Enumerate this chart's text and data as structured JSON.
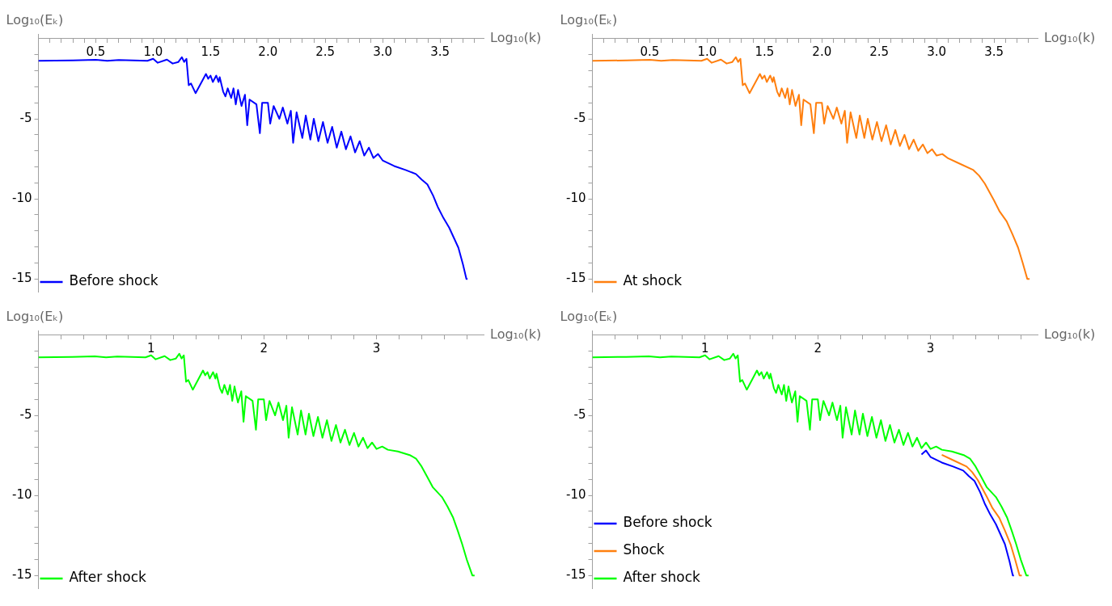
{
  "chart_data": [
    {
      "type": "line",
      "xlabel": "Log₁₀(k)",
      "ylabel": "Log₁₀(Eₖ)",
      "xlim": [
        0,
        3.88
      ],
      "ylim": [
        -15.8,
        0.3
      ],
      "legend": "bottom left",
      "marker": "none",
      "xticks": [
        {
          "value": 0.1,
          "label": null
        },
        {
          "value": 0.2,
          "label": null
        },
        {
          "value": 0.3,
          "label": null
        },
        {
          "value": 0.4,
          "label": null
        },
        0.5,
        {
          "value": 0.6,
          "label": null
        },
        {
          "value": 0.7,
          "label": null
        },
        {
          "value": 0.8,
          "label": null
        },
        {
          "value": 0.9,
          "label": null
        },
        {
          "value": 1,
          "label": "1.0"
        },
        {
          "value": 1.1,
          "label": null
        },
        {
          "value": 1.2,
          "label": null
        },
        {
          "value": 1.3,
          "label": null
        },
        {
          "value": 1.4,
          "label": null
        },
        1.5,
        {
          "value": 1.6,
          "label": null
        },
        {
          "value": 1.7,
          "label": null
        },
        {
          "value": 1.8,
          "label": null
        },
        {
          "value": 1.9,
          "label": null
        },
        {
          "value": 2,
          "label": "2.0"
        },
        {
          "value": 2.1,
          "label": null
        },
        {
          "value": 2.2,
          "label": null
        },
        {
          "value": 2.3,
          "label": null
        },
        {
          "value": 2.4,
          "label": null
        },
        2.5,
        {
          "value": 2.6,
          "label": null
        },
        {
          "value": 2.7,
          "label": null
        },
        {
          "value": 2.8,
          "label": null
        },
        {
          "value": 2.9,
          "label": null
        },
        {
          "value": 3,
          "label": "3.0"
        },
        {
          "value": 3.1,
          "label": null
        },
        {
          "value": 3.2,
          "label": null
        },
        {
          "value": 3.3,
          "label": null
        },
        {
          "value": 3.4,
          "label": null
        },
        3.5,
        {
          "value": 3.6,
          "label": null
        },
        {
          "value": 3.7,
          "label": null
        },
        {
          "value": 3.8,
          "label": null
        }
      ],
      "yticks": [
        {
          "value": -1,
          "label": null
        },
        {
          "value": -2,
          "label": null
        },
        {
          "value": -3,
          "label": null
        },
        {
          "value": -4,
          "label": null
        },
        -5,
        {
          "value": -6,
          "label": null
        },
        {
          "value": -7,
          "label": null
        },
        {
          "value": -8,
          "label": null
        },
        {
          "value": -9,
          "label": null
        },
        -10,
        {
          "value": -11,
          "label": null
        },
        {
          "value": -12,
          "label": null
        },
        {
          "value": -13,
          "label": null
        },
        {
          "value": -14,
          "label": null
        },
        -15
      ],
      "series": [
        {
          "name": "Before shock",
          "color": "#0000ff",
          "x": [
            0,
            0.3,
            0.5,
            0.6,
            0.7,
            0.95,
            1.0,
            1.04,
            1.12,
            1.17,
            1.22,
            1.25,
            1.27,
            1.29,
            1.31,
            1.33,
            1.37,
            1.43,
            1.46,
            1.48,
            1.5,
            1.52,
            1.55,
            1.57,
            1.58,
            1.61,
            1.63,
            1.65,
            1.68,
            1.7,
            1.72,
            1.74,
            1.77,
            1.8,
            1.82,
            1.84,
            1.9,
            1.93,
            1.95,
            2.0,
            2.02,
            2.05,
            2.1,
            2.13,
            2.17,
            2.2,
            2.22,
            2.25,
            2.3,
            2.33,
            2.37,
            2.4,
            2.44,
            2.48,
            2.52,
            2.56,
            2.6,
            2.64,
            2.68,
            2.72,
            2.76,
            2.8,
            2.84,
            2.88,
            2.92,
            2.96,
            3.0,
            3.1,
            3.2,
            3.29,
            3.34,
            3.39,
            3.44,
            3.48,
            3.53,
            3.58,
            3.66,
            3.7,
            3.73,
            3.74
          ],
          "values": [
            -1.38,
            -1.35,
            -1.32,
            -1.38,
            -1.33,
            -1.38,
            -1.25,
            -1.5,
            -1.3,
            -1.55,
            -1.45,
            -1.15,
            -1.45,
            -1.25,
            -2.9,
            -2.8,
            -3.4,
            -2.6,
            -2.2,
            -2.5,
            -2.3,
            -2.7,
            -2.3,
            -2.7,
            -2.4,
            -3.3,
            -3.6,
            -3.1,
            -3.7,
            -3.1,
            -4.1,
            -3.2,
            -4.2,
            -3.5,
            -5.4,
            -3.8,
            -4.1,
            -5.9,
            -4.0,
            -4.0,
            -5.3,
            -4.2,
            -5.0,
            -4.3,
            -5.3,
            -4.5,
            -6.5,
            -4.6,
            -6.2,
            -4.8,
            -6.3,
            -5.0,
            -6.4,
            -5.2,
            -6.5,
            -5.5,
            -6.8,
            -5.8,
            -6.9,
            -6.1,
            -7.1,
            -6.4,
            -7.3,
            -6.8,
            -7.45,
            -7.2,
            -7.6,
            -7.95,
            -8.2,
            -8.45,
            -8.8,
            -9.1,
            -9.8,
            -10.5,
            -11.2,
            -11.8,
            -13.05,
            -14.1,
            -15.0,
            -15.0
          ]
        }
      ]
    },
    {
      "type": "line",
      "xlabel": "Log₁₀(k)",
      "ylabel": "Log₁₀(Eₖ)",
      "xlim": [
        0,
        3.88
      ],
      "ylim": [
        -15.8,
        0.3
      ],
      "legend": "bottom left",
      "marker": "none",
      "xticks": [
        {
          "value": 0.1,
          "label": null
        },
        {
          "value": 0.2,
          "label": null
        },
        {
          "value": 0.3,
          "label": null
        },
        {
          "value": 0.4,
          "label": null
        },
        0.5,
        {
          "value": 0.6,
          "label": null
        },
        {
          "value": 0.7,
          "label": null
        },
        {
          "value": 0.8,
          "label": null
        },
        {
          "value": 0.9,
          "label": null
        },
        {
          "value": 1,
          "label": "1.0"
        },
        {
          "value": 1.1,
          "label": null
        },
        {
          "value": 1.2,
          "label": null
        },
        {
          "value": 1.3,
          "label": null
        },
        {
          "value": 1.4,
          "label": null
        },
        1.5,
        {
          "value": 1.6,
          "label": null
        },
        {
          "value": 1.7,
          "label": null
        },
        {
          "value": 1.8,
          "label": null
        },
        {
          "value": 1.9,
          "label": null
        },
        {
          "value": 2,
          "label": "2.0"
        },
        {
          "value": 2.1,
          "label": null
        },
        {
          "value": 2.2,
          "label": null
        },
        {
          "value": 2.3,
          "label": null
        },
        {
          "value": 2.4,
          "label": null
        },
        2.5,
        {
          "value": 2.6,
          "label": null
        },
        {
          "value": 2.7,
          "label": null
        },
        {
          "value": 2.8,
          "label": null
        },
        {
          "value": 2.9,
          "label": null
        },
        {
          "value": 3,
          "label": "3.0"
        },
        {
          "value": 3.1,
          "label": null
        },
        {
          "value": 3.2,
          "label": null
        },
        {
          "value": 3.3,
          "label": null
        },
        {
          "value": 3.4,
          "label": null
        },
        3.5,
        {
          "value": 3.6,
          "label": null
        },
        {
          "value": 3.7,
          "label": null
        },
        {
          "value": 3.8,
          "label": null
        }
      ],
      "yticks": [
        {
          "value": -1,
          "label": null
        },
        {
          "value": -2,
          "label": null
        },
        {
          "value": -3,
          "label": null
        },
        {
          "value": -4,
          "label": null
        },
        -5,
        {
          "value": -6,
          "label": null
        },
        {
          "value": -7,
          "label": null
        },
        {
          "value": -8,
          "label": null
        },
        {
          "value": -9,
          "label": null
        },
        -10,
        {
          "value": -11,
          "label": null
        },
        {
          "value": -12,
          "label": null
        },
        {
          "value": -13,
          "label": null
        },
        {
          "value": -14,
          "label": null
        },
        -15
      ],
      "series": [
        {
          "name": "At shock",
          "color": "#ff7f0e",
          "x": [
            0,
            0.3,
            0.5,
            0.6,
            0.7,
            0.95,
            1.0,
            1.04,
            1.12,
            1.17,
            1.22,
            1.25,
            1.27,
            1.29,
            1.31,
            1.33,
            1.37,
            1.43,
            1.46,
            1.48,
            1.5,
            1.52,
            1.55,
            1.57,
            1.58,
            1.61,
            1.63,
            1.65,
            1.68,
            1.7,
            1.72,
            1.74,
            1.77,
            1.8,
            1.82,
            1.84,
            1.9,
            1.93,
            1.95,
            2.0,
            2.02,
            2.05,
            2.1,
            2.13,
            2.17,
            2.2,
            2.22,
            2.25,
            2.3,
            2.33,
            2.37,
            2.4,
            2.44,
            2.48,
            2.52,
            2.56,
            2.6,
            2.64,
            2.68,
            2.72,
            2.76,
            2.8,
            2.84,
            2.88,
            2.92,
            2.96,
            3.0,
            3.05,
            3.1,
            3.2,
            3.32,
            3.37,
            3.42,
            3.5,
            3.55,
            3.61,
            3.66,
            3.71,
            3.75,
            3.79,
            3.81
          ],
          "values": [
            -1.38,
            -1.35,
            -1.32,
            -1.38,
            -1.33,
            -1.38,
            -1.25,
            -1.5,
            -1.3,
            -1.55,
            -1.45,
            -1.15,
            -1.45,
            -1.25,
            -2.9,
            -2.8,
            -3.4,
            -2.6,
            -2.2,
            -2.5,
            -2.3,
            -2.7,
            -2.3,
            -2.7,
            -2.4,
            -3.3,
            -3.6,
            -3.1,
            -3.7,
            -3.1,
            -4.1,
            -3.2,
            -4.2,
            -3.5,
            -5.4,
            -3.8,
            -4.1,
            -5.9,
            -4.0,
            -4.0,
            -5.3,
            -4.2,
            -5.0,
            -4.3,
            -5.3,
            -4.5,
            -6.5,
            -4.6,
            -6.2,
            -4.8,
            -6.2,
            -5.0,
            -6.3,
            -5.2,
            -6.4,
            -5.4,
            -6.6,
            -5.7,
            -6.7,
            -6.0,
            -6.9,
            -6.3,
            -7.0,
            -6.6,
            -7.15,
            -6.9,
            -7.3,
            -7.2,
            -7.47,
            -7.8,
            -8.2,
            -8.55,
            -9.05,
            -10.1,
            -10.8,
            -11.4,
            -12.2,
            -13.05,
            -14.0,
            -15.0,
            -15.0
          ]
        }
      ]
    },
    {
      "type": "line",
      "xlabel": "Log₁₀(k)",
      "ylabel": "Log₁₀(Eₖ)",
      "xlim": [
        0,
        3.95
      ],
      "ylim": [
        -15.8,
        0.3
      ],
      "legend": "bottom left",
      "marker": "none",
      "xticks": [
        {
          "value": 0.2,
          "label": null
        },
        {
          "value": 0.4,
          "label": null
        },
        {
          "value": 0.6,
          "label": null
        },
        {
          "value": 0.8,
          "label": null
        },
        1,
        {
          "value": 1.2,
          "label": null
        },
        {
          "value": 1.4,
          "label": null
        },
        {
          "value": 1.6,
          "label": null
        },
        {
          "value": 1.8,
          "label": null
        },
        2,
        {
          "value": 2.2,
          "label": null
        },
        {
          "value": 2.4,
          "label": null
        },
        {
          "value": 2.6,
          "label": null
        },
        {
          "value": 2.8,
          "label": null
        },
        3,
        {
          "value": 3.2,
          "label": null
        },
        {
          "value": 3.4,
          "label": null
        },
        {
          "value": 3.6,
          "label": null
        },
        {
          "value": 3.8,
          "label": null
        }
      ],
      "yticks": [
        {
          "value": -1,
          "label": null
        },
        {
          "value": -2,
          "label": null
        },
        {
          "value": -3,
          "label": null
        },
        {
          "value": -4,
          "label": null
        },
        -5,
        {
          "value": -6,
          "label": null
        },
        {
          "value": -7,
          "label": null
        },
        {
          "value": -8,
          "label": null
        },
        {
          "value": -9,
          "label": null
        },
        -10,
        {
          "value": -11,
          "label": null
        },
        {
          "value": -12,
          "label": null
        },
        {
          "value": -13,
          "label": null
        },
        {
          "value": -14,
          "label": null
        },
        -15
      ],
      "series": [
        {
          "name": "After shock",
          "color": "#00ff00",
          "x": [
            0,
            0.3,
            0.5,
            0.6,
            0.7,
            0.95,
            1.0,
            1.04,
            1.12,
            1.17,
            1.22,
            1.25,
            1.27,
            1.29,
            1.31,
            1.33,
            1.37,
            1.43,
            1.46,
            1.48,
            1.5,
            1.52,
            1.55,
            1.57,
            1.58,
            1.61,
            1.63,
            1.65,
            1.68,
            1.7,
            1.72,
            1.74,
            1.77,
            1.8,
            1.82,
            1.84,
            1.9,
            1.93,
            1.95,
            2.0,
            2.02,
            2.05,
            2.1,
            2.13,
            2.17,
            2.2,
            2.22,
            2.25,
            2.3,
            2.33,
            2.37,
            2.4,
            2.44,
            2.48,
            2.52,
            2.56,
            2.6,
            2.64,
            2.68,
            2.72,
            2.76,
            2.8,
            2.84,
            2.88,
            2.92,
            2.96,
            3.0,
            3.05,
            3.1,
            3.19,
            3.3,
            3.35,
            3.4,
            3.45,
            3.5,
            3.58,
            3.63,
            3.68,
            3.72,
            3.76,
            3.8,
            3.85,
            3.87
          ],
          "values": [
            -1.38,
            -1.35,
            -1.32,
            -1.38,
            -1.33,
            -1.38,
            -1.25,
            -1.5,
            -1.3,
            -1.55,
            -1.45,
            -1.15,
            -1.45,
            -1.25,
            -2.9,
            -2.8,
            -3.4,
            -2.6,
            -2.2,
            -2.5,
            -2.3,
            -2.7,
            -2.3,
            -2.7,
            -2.4,
            -3.3,
            -3.6,
            -3.1,
            -3.7,
            -3.1,
            -4.1,
            -3.2,
            -4.2,
            -3.5,
            -5.4,
            -3.8,
            -4.1,
            -5.9,
            -4.0,
            -4.0,
            -5.3,
            -4.1,
            -5.0,
            -4.2,
            -5.3,
            -4.4,
            -6.4,
            -4.5,
            -6.2,
            -4.7,
            -6.2,
            -4.9,
            -6.3,
            -5.1,
            -6.4,
            -5.3,
            -6.6,
            -5.6,
            -6.7,
            -5.9,
            -6.85,
            -6.1,
            -6.95,
            -6.4,
            -7.05,
            -6.7,
            -7.1,
            -6.95,
            -7.15,
            -7.26,
            -7.5,
            -7.7,
            -8.2,
            -8.85,
            -9.5,
            -10.1,
            -10.7,
            -11.4,
            -12.2,
            -13.05,
            -14.0,
            -15.0,
            -15.0
          ]
        }
      ]
    },
    {
      "type": "line",
      "xlabel": "Log₁₀(k)",
      "ylabel": "Log₁₀(Eₖ)",
      "xlim": [
        0,
        3.95
      ],
      "ylim": [
        -15.8,
        0.3
      ],
      "legend": "bottom left",
      "marker": "none",
      "xticks": [
        {
          "value": 0.2,
          "label": null
        },
        {
          "value": 0.4,
          "label": null
        },
        {
          "value": 0.6,
          "label": null
        },
        {
          "value": 0.8,
          "label": null
        },
        1,
        {
          "value": 1.2,
          "label": null
        },
        {
          "value": 1.4,
          "label": null
        },
        {
          "value": 1.6,
          "label": null
        },
        {
          "value": 1.8,
          "label": null
        },
        2,
        {
          "value": 2.2,
          "label": null
        },
        {
          "value": 2.4,
          "label": null
        },
        {
          "value": 2.6,
          "label": null
        },
        {
          "value": 2.8,
          "label": null
        },
        3,
        {
          "value": 3.2,
          "label": null
        },
        {
          "value": 3.4,
          "label": null
        },
        {
          "value": 3.6,
          "label": null
        },
        {
          "value": 3.8,
          "label": null
        }
      ],
      "yticks": [
        {
          "value": -1,
          "label": null
        },
        {
          "value": -2,
          "label": null
        },
        {
          "value": -3,
          "label": null
        },
        {
          "value": -4,
          "label": null
        },
        -5,
        {
          "value": -6,
          "label": null
        },
        {
          "value": -7,
          "label": null
        },
        {
          "value": -8,
          "label": null
        },
        {
          "value": -9,
          "label": null
        },
        -10,
        {
          "value": -11,
          "label": null
        },
        {
          "value": -12,
          "label": null
        },
        {
          "value": -13,
          "label": null
        },
        {
          "value": -14,
          "label": null
        },
        -15
      ],
      "series": [
        {
          "name": "Before shock",
          "color": "#0000ff",
          "x": [
            2.92,
            2.96,
            3.0,
            3.1,
            3.2,
            3.29,
            3.34,
            3.39,
            3.44,
            3.48,
            3.53,
            3.58,
            3.66,
            3.7,
            3.73,
            3.74
          ],
          "values": [
            -7.45,
            -7.2,
            -7.6,
            -7.95,
            -8.2,
            -8.45,
            -8.8,
            -9.1,
            -9.8,
            -10.5,
            -11.2,
            -11.8,
            -13.05,
            -14.1,
            -15.0,
            -15.0
          ]
        },
        {
          "name": "Shock",
          "color": "#ff7f0e",
          "x": [
            3.1,
            3.2,
            3.32,
            3.37,
            3.42,
            3.5,
            3.55,
            3.61,
            3.66,
            3.71,
            3.75,
            3.79,
            3.81
          ],
          "values": [
            -7.47,
            -7.8,
            -8.2,
            -8.55,
            -9.05,
            -10.1,
            -10.8,
            -11.4,
            -12.2,
            -13.05,
            -14.0,
            -15.0,
            -15.0
          ]
        },
        {
          "name": "After shock",
          "color": "#00ff00",
          "x": [
            0,
            0.3,
            0.5,
            0.6,
            0.7,
            0.95,
            1.0,
            1.04,
            1.12,
            1.17,
            1.22,
            1.25,
            1.27,
            1.29,
            1.31,
            1.33,
            1.37,
            1.43,
            1.46,
            1.48,
            1.5,
            1.52,
            1.55,
            1.57,
            1.58,
            1.61,
            1.63,
            1.65,
            1.68,
            1.7,
            1.72,
            1.74,
            1.77,
            1.8,
            1.82,
            1.84,
            1.9,
            1.93,
            1.95,
            2.0,
            2.02,
            2.05,
            2.1,
            2.13,
            2.17,
            2.2,
            2.22,
            2.25,
            2.3,
            2.33,
            2.37,
            2.4,
            2.44,
            2.48,
            2.52,
            2.56,
            2.6,
            2.64,
            2.68,
            2.72,
            2.76,
            2.8,
            2.84,
            2.88,
            2.92,
            2.96,
            3.0,
            3.05,
            3.1,
            3.19,
            3.3,
            3.35,
            3.4,
            3.45,
            3.5,
            3.58,
            3.63,
            3.68,
            3.72,
            3.76,
            3.8,
            3.85,
            3.87
          ],
          "values": [
            -1.38,
            -1.35,
            -1.32,
            -1.38,
            -1.33,
            -1.38,
            -1.25,
            -1.5,
            -1.3,
            -1.55,
            -1.45,
            -1.15,
            -1.45,
            -1.25,
            -2.9,
            -2.8,
            -3.4,
            -2.6,
            -2.2,
            -2.5,
            -2.3,
            -2.7,
            -2.3,
            -2.7,
            -2.4,
            -3.3,
            -3.6,
            -3.1,
            -3.7,
            -3.1,
            -4.1,
            -3.2,
            -4.2,
            -3.5,
            -5.4,
            -3.8,
            -4.1,
            -5.9,
            -4.0,
            -4.0,
            -5.3,
            -4.1,
            -5.0,
            -4.2,
            -5.3,
            -4.4,
            -6.4,
            -4.5,
            -6.2,
            -4.7,
            -6.2,
            -4.9,
            -6.3,
            -5.1,
            -6.4,
            -5.3,
            -6.6,
            -5.6,
            -6.7,
            -5.9,
            -6.85,
            -6.1,
            -6.95,
            -6.4,
            -7.05,
            -6.7,
            -7.1,
            -6.95,
            -7.15,
            -7.26,
            -7.5,
            -7.7,
            -8.2,
            -8.85,
            -9.5,
            -10.1,
            -10.7,
            -11.4,
            -12.2,
            -13.05,
            -14.0,
            -15.0,
            -15.0
          ]
        }
      ]
    }
  ]
}
